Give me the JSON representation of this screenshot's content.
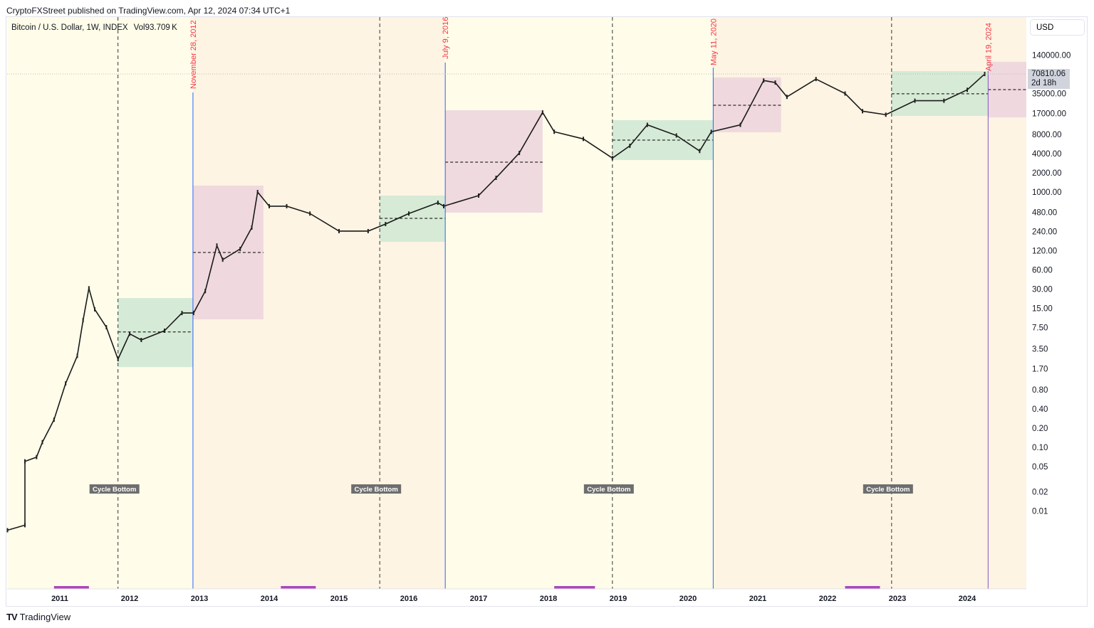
{
  "header": {
    "published": "CryptoFXStreet published on TradingView.com, Apr 12, 2024 07:34 UTC+1"
  },
  "legend": {
    "symbol": "Bitcoin / U.S. Dollar, 1W, INDEX",
    "volume": "Vol93.709 K"
  },
  "currency_button": "USD",
  "last_price": {
    "value": "70810.06",
    "countdown": "2d 18h"
  },
  "footer": {
    "brand": "TradingView"
  },
  "colors": {
    "band_a": "#fffde9",
    "band_b": "#fdf4e3",
    "green_box": "#cfe8d4",
    "pink_box": "#ecd4dd",
    "halving_line": "#2962ff",
    "halving_label": "#f23645",
    "cycle_bottom_bg": "#6e6e6e",
    "marker": "#ab47bc"
  },
  "chart_data": {
    "type": "candlestick-line",
    "y_scale": "log",
    "y_ticks": [
      "140000.00",
      "35000.00",
      "17000.00",
      "8000.00",
      "4000.00",
      "2000.00",
      "1000.00",
      "480.00",
      "240.00",
      "120.00",
      "60.00",
      "30.00",
      "15.00",
      "7.50",
      "3.50",
      "1.70",
      "0.80",
      "0.40",
      "0.20",
      "0.10",
      "0.05",
      "0.02",
      "0.01"
    ],
    "x_ticks": [
      "2011",
      "2012",
      "2013",
      "2014",
      "2015",
      "2016",
      "2017",
      "2018",
      "2019",
      "2020",
      "2021",
      "2022",
      "2023",
      "2024"
    ],
    "xlim": [
      "2010-04",
      "2024-12"
    ],
    "series": [
      {
        "values": [
          [
            "2010-04",
            0.005
          ],
          [
            "2010-07",
            0.006
          ],
          [
            "2010-07",
            0.06
          ],
          [
            "2010-09",
            0.07
          ],
          [
            "2010-10",
            0.12
          ],
          [
            "2010-12",
            0.27
          ],
          [
            "2011-02",
            1.0
          ],
          [
            "2011-04",
            2.7
          ],
          [
            "2011-05",
            9.8
          ],
          [
            "2011-06",
            31
          ],
          [
            "2011-07",
            14.5
          ],
          [
            "2011-09",
            7.6
          ],
          [
            "2011-11",
            2.4
          ],
          [
            "2012-01",
            6
          ],
          [
            "2012-03",
            4.8
          ],
          [
            "2012-07",
            6.7
          ],
          [
            "2012-10",
            12.7
          ],
          [
            "2012-12",
            12.7
          ],
          [
            "2013-02",
            28
          ],
          [
            "2013-04",
            145
          ],
          [
            "2013-05",
            87
          ],
          [
            "2013-08",
            128
          ],
          [
            "2013-10",
            277
          ],
          [
            "2013-11",
            1000
          ],
          [
            "2014-01",
            600
          ],
          [
            "2014-04",
            600
          ],
          [
            "2014-08",
            460
          ],
          [
            "2015-01",
            244
          ],
          [
            "2015-06",
            244
          ],
          [
            "2015-09",
            315
          ],
          [
            "2016-01",
            460
          ],
          [
            "2016-06",
            680
          ],
          [
            "2016-07",
            600
          ],
          [
            "2017-01",
            880
          ],
          [
            "2017-04",
            1670
          ],
          [
            "2017-08",
            4100
          ],
          [
            "2017-12",
            17700
          ],
          [
            "2018-02",
            8800
          ],
          [
            "2018-07",
            6800
          ],
          [
            "2018-12",
            3400
          ],
          [
            "2019-03",
            5300
          ],
          [
            "2019-06",
            11300
          ],
          [
            "2019-11",
            7700
          ],
          [
            "2020-03",
            4400
          ],
          [
            "2020-05",
            8800
          ],
          [
            "2020-10",
            11300
          ],
          [
            "2021-02",
            56000
          ],
          [
            "2021-04",
            52000
          ],
          [
            "2021-06",
            31000
          ],
          [
            "2021-11",
            59000
          ],
          [
            "2022-04",
            35000
          ],
          [
            "2022-07",
            18500
          ],
          [
            "2022-11",
            16300
          ],
          [
            "2023-04",
            27000
          ],
          [
            "2023-09",
            27000
          ],
          [
            "2024-01",
            40000
          ],
          [
            "2024-04",
            70810
          ]
        ]
      }
    ],
    "bands": [
      {
        "from": "2010-04",
        "to": "2012-11-28",
        "color": "band_a"
      },
      {
        "from": "2012-11-28",
        "to": "2016-07-09",
        "color": "band_b"
      },
      {
        "from": "2016-07-09",
        "to": "2020-05-11",
        "color": "band_a"
      },
      {
        "from": "2020-05-11",
        "to": "2024-12",
        "color": "band_b"
      }
    ],
    "boxes": [
      {
        "from": "2011-11",
        "to": "2012-11-28",
        "high": 21.8,
        "low": 1.8,
        "mid": 6.4,
        "color": "green_box"
      },
      {
        "from": "2012-11-28",
        "to": "2013-12",
        "high": 1260,
        "low": 10.1,
        "mid": 113,
        "color": "pink_box"
      },
      {
        "from": "2015-08",
        "to": "2016-07-09",
        "high": 880,
        "low": 166,
        "mid": 387,
        "color": "green_box"
      },
      {
        "from": "2016-07-09",
        "to": "2017-12",
        "high": 19150,
        "low": 475,
        "mid": 2940,
        "color": "pink_box"
      },
      {
        "from": "2018-12",
        "to": "2020-05-11",
        "high": 13400,
        "low": 3170,
        "mid": 6520,
        "color": "green_box"
      },
      {
        "from": "2020-05-11",
        "to": "2021-05",
        "high": 62600,
        "low": 8650,
        "mid": 22900,
        "color": "pink_box"
      },
      {
        "from": "2022-12",
        "to": "2024-04-19",
        "high": 78500,
        "low": 15600,
        "mid": 34700,
        "color": "green_box"
      },
      {
        "from": "2024-04-19",
        "to": "2024-12",
        "high": 110000,
        "low": 14800,
        "mid": 40300,
        "color": "pink_box"
      }
    ],
    "halvings": [
      {
        "date": "2012-11-28",
        "label": "November 28, 2012"
      },
      {
        "date": "2016-07-09",
        "label": "July 9, 2016"
      },
      {
        "date": "2020-05-11",
        "label": "May 11, 2020"
      },
      {
        "date": "2024-04-19",
        "label": "April 19, 2024"
      }
    ],
    "cycle_bottoms": [
      {
        "date": "2011-11",
        "label": "Cycle Bottom"
      },
      {
        "date": "2015-08",
        "label": "Cycle Bottom"
      },
      {
        "date": "2018-12",
        "label": "Cycle Bottom"
      },
      {
        "date": "2022-12",
        "label": "Cycle Bottom"
      }
    ],
    "bottom_markers": [
      [
        "2010-12",
        "2011-06"
      ],
      [
        "2014-03",
        "2014-09"
      ],
      [
        "2018-02",
        "2018-09"
      ],
      [
        "2022-04",
        "2022-10"
      ]
    ]
  }
}
